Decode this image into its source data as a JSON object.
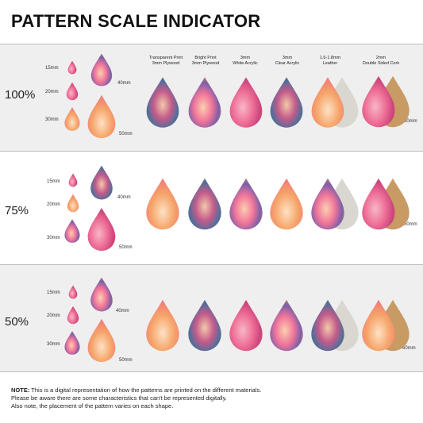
{
  "title": "PATTERN SCALE INDICATOR",
  "materials": [
    [
      "Transparent Print",
      "3mm Plywood"
    ],
    [
      "Bright Print",
      "3mm Plywood"
    ],
    [
      "3mm",
      "White Acrylic"
    ],
    [
      "3mm",
      "Clear Acrylic"
    ],
    [
      "1.6-1.8mm",
      "Leather"
    ],
    [
      "2mm",
      "Double Sided Cork"
    ]
  ],
  "rows": [
    {
      "scale": "100%",
      "sizes": [
        "15mm",
        "20mm",
        "30mm",
        "40mm",
        "50mm"
      ],
      "wide": "60mm"
    },
    {
      "scale": "75%",
      "sizes": [
        "15mm",
        "20mm",
        "30mm",
        "40mm",
        "50mm"
      ],
      "wide": "60mm"
    },
    {
      "scale": "50%",
      "sizes": [
        "15mm",
        "20mm",
        "30mm",
        "40mm",
        "50mm"
      ],
      "wide": "60mm"
    }
  ],
  "note": {
    "label": "NOTE:",
    "line1": " This is a digital representation of how the patterns are printed on the different materials.",
    "line2": "Please be aware there are some characteristics that can't be represented digitally.",
    "line3": "Also note, the placement of the pattern varies on each shape."
  },
  "colors": {
    "band": "#efefef",
    "rule": "#bdbdbd",
    "wood": "#b5683f",
    "cork": "#c89a64",
    "leather": "#d9d7cf"
  }
}
